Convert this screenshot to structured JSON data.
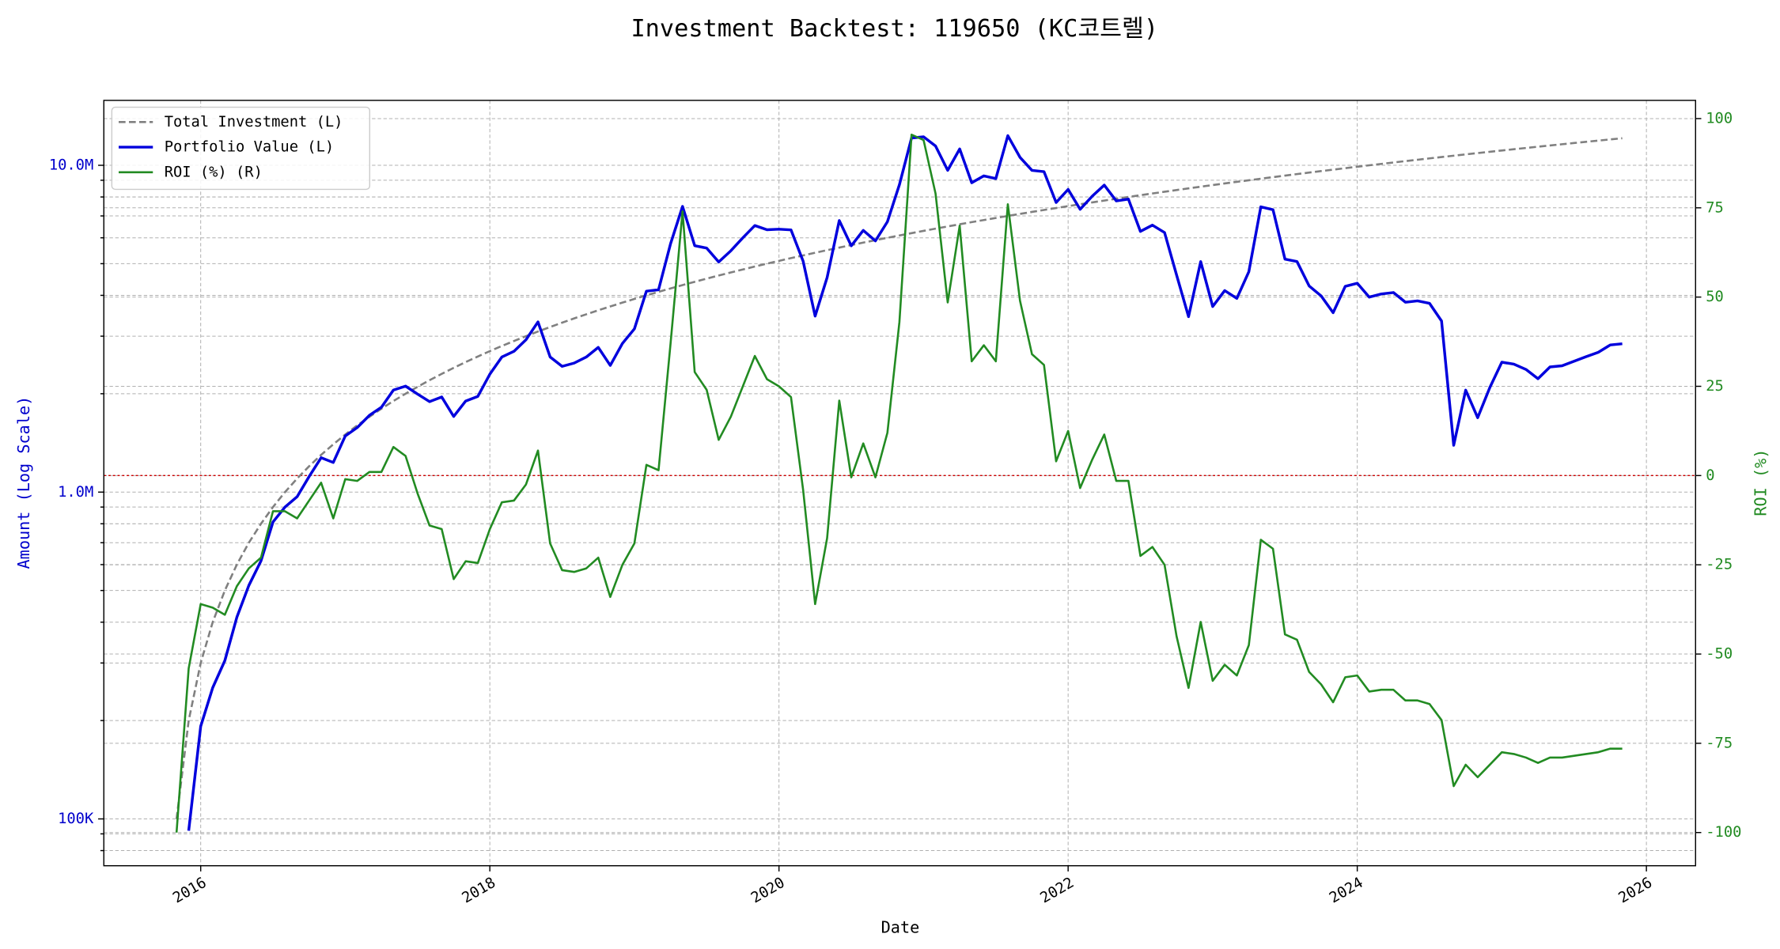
{
  "chart_data": {
    "type": "line",
    "title": "Investment Backtest: 119650 (KC코트렐)",
    "xlabel": "Date",
    "ylabel": "Amount (Log Scale)",
    "y2label": "ROI (%)",
    "yscale": "log",
    "grid": true,
    "legend": "upper left",
    "xlim": [
      2015.33,
      2026.34
    ],
    "xticks": [
      2016,
      2018,
      2020,
      2022,
      2024,
      2026
    ],
    "ylim": [
      71900,
      15800000
    ],
    "yticks": [
      {
        "value": 100000,
        "label": "100K"
      },
      {
        "value": 1000000,
        "label": "1.0M"
      },
      {
        "value": 10000000,
        "label": "10.0M"
      }
    ],
    "y_minor_ticks": [
      80000,
      90000,
      200000,
      300000,
      400000,
      500000,
      600000,
      700000,
      800000,
      900000,
      2000000,
      3000000,
      4000000,
      5000000,
      6000000,
      7000000,
      8000000,
      9000000
    ],
    "y2lim": [
      -109.3,
      105.1
    ],
    "y2ticks": [
      -100,
      -75,
      -50,
      -25,
      0,
      25,
      50,
      75,
      100
    ],
    "hline": {
      "axis": "y2",
      "value": 0,
      "color": "#cc0000"
    },
    "x": [
      2015.833,
      2015.917,
      2016.0,
      2016.083,
      2016.167,
      2016.25,
      2016.333,
      2016.417,
      2016.5,
      2016.583,
      2016.667,
      2016.75,
      2016.833,
      2016.917,
      2017.0,
      2017.083,
      2017.167,
      2017.25,
      2017.333,
      2017.417,
      2017.5,
      2017.583,
      2017.667,
      2017.75,
      2017.833,
      2017.917,
      2018.0,
      2018.083,
      2018.167,
      2018.25,
      2018.333,
      2018.417,
      2018.5,
      2018.583,
      2018.667,
      2018.75,
      2018.833,
      2018.917,
      2019.0,
      2019.083,
      2019.167,
      2019.25,
      2019.333,
      2019.417,
      2019.5,
      2019.583,
      2019.667,
      2019.75,
      2019.833,
      2019.917,
      2020.0,
      2020.083,
      2020.167,
      2020.25,
      2020.333,
      2020.417,
      2020.5,
      2020.583,
      2020.667,
      2020.75,
      2020.833,
      2020.917,
      2021.0,
      2021.083,
      2021.167,
      2021.25,
      2021.333,
      2021.417,
      2021.5,
      2021.583,
      2021.667,
      2021.75,
      2021.833,
      2021.917,
      2022.0,
      2022.083,
      2022.167,
      2022.25,
      2022.333,
      2022.417,
      2022.5,
      2022.583,
      2022.667,
      2022.75,
      2022.833,
      2022.917,
      2023.0,
      2023.083,
      2023.167,
      2023.25,
      2023.333,
      2023.417,
      2023.5,
      2023.583,
      2023.667,
      2023.75,
      2023.833,
      2023.917,
      2024.0,
      2024.083,
      2024.167,
      2024.25,
      2024.333,
      2024.417,
      2024.5,
      2024.583,
      2024.667,
      2024.75,
      2024.833,
      2024.917,
      2025.0,
      2025.083,
      2025.167,
      2025.25,
      2025.333,
      2025.417,
      2025.5,
      2025.583,
      2025.667,
      2025.75,
      2025.833
    ],
    "series": [
      {
        "name": "Total Investment (L)",
        "color": "#808080",
        "dash": true,
        "width": 1.8,
        "values": [
          100000,
          200000,
          300000,
          400000,
          500000,
          600000,
          700000,
          800000,
          900000,
          1000000,
          1100000,
          1200000,
          1300000,
          1400000,
          1500000,
          1600000,
          1700000,
          1800000,
          1900000,
          2000000,
          2100000,
          2200000,
          2300000,
          2400000,
          2500000,
          2600000,
          2700000,
          2800000,
          2900000,
          3000000,
          3100000,
          3200000,
          3300000,
          3400000,
          3500000,
          3600000,
          3700000,
          3800000,
          3900000,
          4000000,
          4100000,
          4200000,
          4300000,
          4400000,
          4500000,
          4600000,
          4700000,
          4800000,
          4900000,
          5000000,
          5100000,
          5200000,
          5300000,
          5400000,
          5500000,
          5600000,
          5700000,
          5800000,
          5900000,
          6000000,
          6100000,
          6200000,
          6300000,
          6400000,
          6500000,
          6600000,
          6700000,
          6800000,
          6900000,
          7000000,
          7100000,
          7200000,
          7300000,
          7400000,
          7500000,
          7600000,
          7700000,
          7800000,
          7900000,
          8000000,
          8100000,
          8200000,
          8300000,
          8400000,
          8500000,
          8600000,
          8700000,
          8800000,
          8900000,
          9000000,
          9100000,
          9200000,
          9300000,
          9400000,
          9500000,
          9600000,
          9700000,
          9800000,
          9900000,
          10000000,
          10100000,
          10200000,
          10300000,
          10400000,
          10500000,
          10600000,
          10700000,
          10800000,
          10900000,
          11000000,
          11100000,
          11200000,
          11300000,
          11400000,
          11500000,
          11600000,
          11700000,
          11800000,
          11900000,
          12000000,
          12100000
        ]
      },
      {
        "name": "Portfolio Value (L)",
        "color": "#0000dd",
        "width": 2.4,
        "values": [
          null,
          92000,
          192000,
          252000,
          305000,
          414000,
          518000,
          616000,
          810000,
          900000,
          968000,
          1116000,
          1274000,
          1232000,
          1485000,
          1576000,
          1717000,
          1818000,
          2052000,
          2110000,
          1995000,
          1892000,
          1955000,
          1704000,
          1900000,
          1963000,
          2295000,
          2590000,
          2697000,
          2925000,
          3317000,
          2592000,
          2425500,
          2482000,
          2590000,
          2772000,
          2442000,
          2850000,
          3159000,
          4120000,
          4161500,
          5754000,
          7482000,
          5676000,
          5580000,
          5060000,
          5475500,
          6000000,
          6541500,
          6350000,
          6375000,
          6344000,
          5088000,
          3456000,
          4537500,
          6776000,
          5671500,
          6322000,
          5870500,
          6720000,
          8723000,
          12121000,
          12222000,
          11456000,
          9652500,
          11220000,
          8844000,
          9282000,
          9108000,
          12320000,
          10579000,
          9648000,
          9563000,
          7696000,
          8437500,
          7334000,
          8046500,
          8697000,
          7781500,
          7880000,
          6277500,
          6560000,
          6225000,
          4620000,
          3442500,
          5074000,
          3697500,
          4136000,
          3916000,
          4725000,
          7462000,
          7314000,
          5161500,
          5076000,
          4275000,
          3984000,
          3540500,
          4263000,
          4356000,
          3950000,
          4040000,
          4080000,
          3811000,
          3848000,
          3780000,
          3339000,
          1391000,
          2052000,
          1689500,
          2090000,
          2497500,
          2464000,
          2373000,
          2223000,
          2415000,
          2436000,
          2515500,
          2596000,
          2677500,
          2820000,
          2843500
        ]
      },
      {
        "name": "ROI (%) (R)",
        "color": "#228b22",
        "width": 1.8,
        "axis": "y2",
        "values": [
          -100,
          -54,
          -36,
          -37,
          -39,
          -31,
          -26,
          -23,
          -10,
          -10,
          -12,
          -7,
          -2,
          -12,
          -1,
          -1.5,
          1,
          1,
          8,
          5.5,
          -5,
          -14,
          -15,
          -29,
          -24,
          -24.5,
          -15,
          -7.5,
          -7,
          -2.5,
          7,
          -19,
          -26.5,
          -27,
          -26,
          -23,
          -34,
          -25,
          -19,
          3,
          1.5,
          37,
          74,
          29,
          24,
          10,
          16.5,
          25,
          33.5,
          27,
          25,
          22,
          -4,
          -36,
          -17.5,
          21,
          -0.5,
          9,
          -0.5,
          12,
          43,
          95.5,
          94,
          79,
          48.5,
          70,
          32,
          36.5,
          32,
          76,
          49,
          34,
          31,
          4,
          12.5,
          -3.5,
          4.5,
          11.5,
          -1.5,
          -1.5,
          -22.5,
          -20,
          -25,
          -45,
          -59.5,
          -41,
          -57.5,
          -53,
          -56,
          -47.5,
          -18,
          -20.5,
          -44.5,
          -46,
          -55,
          -58.5,
          -63.5,
          -56.5,
          -56,
          -60.5,
          -60,
          -60,
          -63,
          -63,
          -64,
          -68.5,
          -87,
          -81,
          -84.5,
          -81,
          -77.5,
          -78,
          -79,
          -80.5,
          -79,
          -79,
          -78.5,
          -78,
          -77.5,
          -76.5,
          -76.5
        ]
      }
    ]
  }
}
